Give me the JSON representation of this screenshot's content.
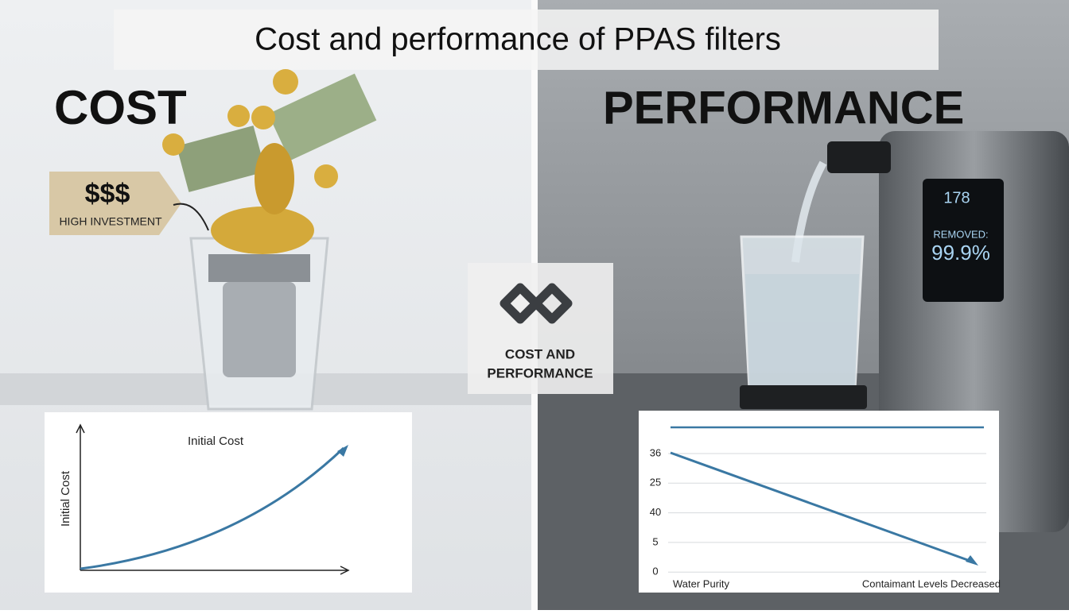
{
  "title": "Cost and performance of PPAS filters",
  "left": {
    "heading": "COST",
    "tag": {
      "price": "$$$",
      "label": "HIGH INVESTMENT"
    },
    "chart": {
      "title": "Initial Cost",
      "y_label": "Initial Cost"
    }
  },
  "center": {
    "label_lines": [
      "COST AND",
      "PERFORMANCE"
    ]
  },
  "right": {
    "heading": "PERFORMANCE",
    "display": {
      "reading": "178",
      "removed_label": "REMOVED:",
      "removed_value": "99.9%"
    },
    "chart": {
      "y_labels": [
        "36",
        "25",
        "40",
        "5",
        "0"
      ],
      "x_labels": [
        "Water Purity",
        "Contaimant Levels Decreased"
      ]
    }
  }
}
